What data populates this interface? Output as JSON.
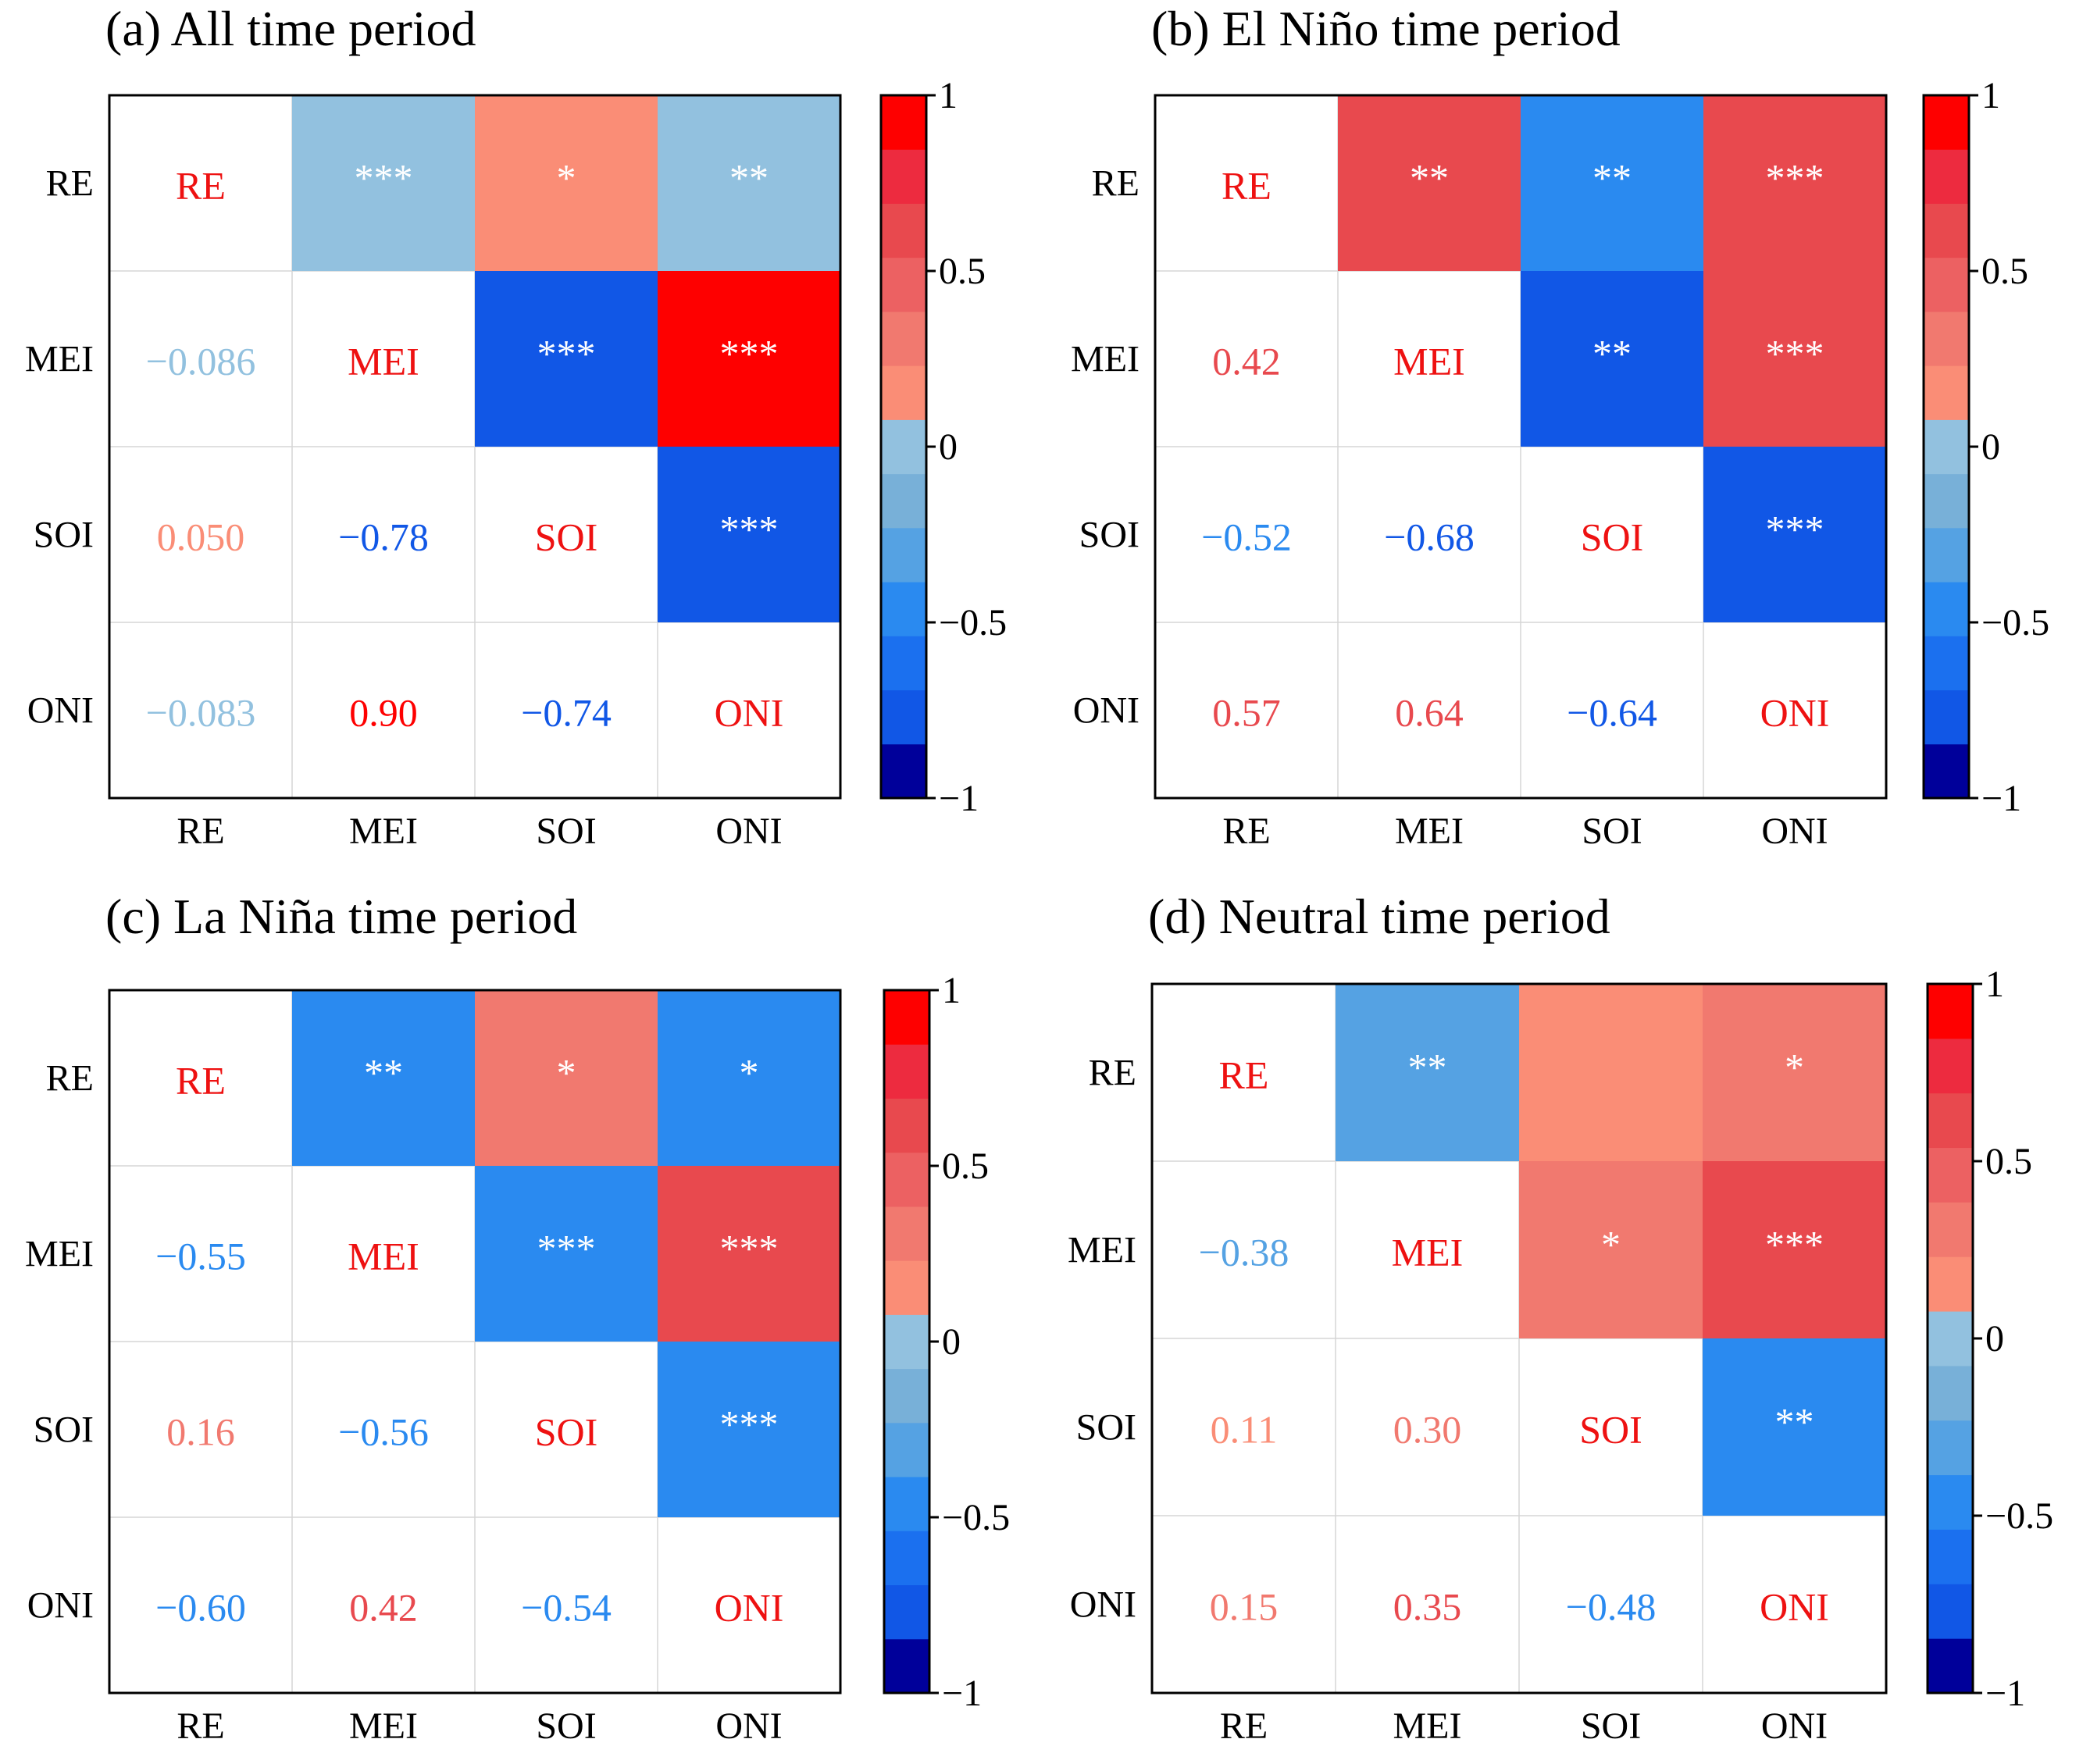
{
  "chart_data": [
    {
      "type": "heatmap",
      "title": "(a) All time period",
      "labels": [
        "RE",
        "MEI",
        "SOI",
        "ONI"
      ],
      "values": [
        [
          1,
          -0.086,
          0.05,
          -0.083
        ],
        [
          -0.086,
          1,
          -0.78,
          0.9
        ],
        [
          0.05,
          -0.78,
          1,
          -0.74
        ],
        [
          -0.083,
          0.9,
          -0.74,
          1
        ]
      ],
      "lower_text": [
        [
          "RE",
          "",
          "",
          ""
        ],
        [
          "−0.086",
          "MEI",
          "",
          ""
        ],
        [
          "0.050",
          "−0.78",
          "SOI",
          ""
        ],
        [
          "−0.083",
          "0.90",
          "−0.74",
          "ONI"
        ]
      ],
      "significance": [
        [
          "",
          "***",
          "*",
          "**"
        ],
        [
          "",
          "",
          "***",
          "***"
        ],
        [
          "",
          "",
          "",
          "***"
        ],
        [
          "",
          "",
          "",
          ""
        ]
      ],
      "colorbar": {
        "range": [
          -1,
          1
        ],
        "ticks": [
          "1",
          "0.5",
          "0",
          "−0.5",
          "−1"
        ]
      }
    },
    {
      "type": "heatmap",
      "title": "(b) El Niño time period",
      "labels": [
        "RE",
        "MEI",
        "SOI",
        "ONI"
      ],
      "values": [
        [
          1,
          0.42,
          -0.52,
          0.57
        ],
        [
          0.42,
          1,
          -0.68,
          0.64
        ],
        [
          -0.52,
          -0.68,
          1,
          -0.64
        ],
        [
          0.57,
          0.64,
          -0.64,
          1
        ]
      ],
      "lower_text": [
        [
          "RE",
          "",
          "",
          ""
        ],
        [
          "0.42",
          "MEI",
          "",
          ""
        ],
        [
          "−0.52",
          "−0.68",
          "SOI",
          ""
        ],
        [
          "0.57",
          "0.64",
          "−0.64",
          "ONI"
        ]
      ],
      "significance": [
        [
          "",
          "**",
          "**",
          "***"
        ],
        [
          "",
          "",
          "**",
          "***"
        ],
        [
          "",
          "",
          "",
          "***"
        ],
        [
          "",
          "",
          "",
          ""
        ]
      ],
      "colorbar": {
        "range": [
          -1,
          1
        ],
        "ticks": [
          "1",
          "0.5",
          "0",
          "−0.5",
          "−1"
        ]
      }
    },
    {
      "type": "heatmap",
      "title": "(c) La Niña time period",
      "labels": [
        "RE",
        "MEI",
        "SOI",
        "ONI"
      ],
      "values": [
        [
          1,
          -0.55,
          0.16,
          -0.6
        ],
        [
          -0.55,
          1,
          -0.56,
          0.42
        ],
        [
          0.16,
          -0.56,
          1,
          -0.54
        ],
        [
          -0.6,
          0.42,
          -0.54,
          1
        ]
      ],
      "lower_text": [
        [
          "RE",
          "",
          "",
          ""
        ],
        [
          "−0.55",
          "MEI",
          "",
          ""
        ],
        [
          "0.16",
          "−0.56",
          "SOI",
          ""
        ],
        [
          "−0.60",
          "0.42",
          "−0.54",
          "ONI"
        ]
      ],
      "significance": [
        [
          "",
          "**",
          "*",
          "*"
        ],
        [
          "",
          "",
          "***",
          "***"
        ],
        [
          "",
          "",
          "",
          "***"
        ],
        [
          "",
          "",
          "",
          ""
        ]
      ],
      "colorbar": {
        "range": [
          -1,
          1
        ],
        "ticks": [
          "1",
          "0.5",
          "0",
          "−0.5",
          "−1"
        ]
      }
    },
    {
      "type": "heatmap",
      "title": "(d) Neutral time period",
      "labels": [
        "RE",
        "MEI",
        "SOI",
        "ONI"
      ],
      "values": [
        [
          1,
          -0.38,
          0.11,
          0.15
        ],
        [
          -0.38,
          1,
          0.3,
          0.35
        ],
        [
          0.11,
          0.3,
          1,
          -0.48
        ],
        [
          0.15,
          0.35,
          -0.48,
          1
        ]
      ],
      "lower_text": [
        [
          "RE",
          "",
          "",
          ""
        ],
        [
          "−0.38",
          "MEI",
          "",
          ""
        ],
        [
          "0.11",
          "0.30",
          "SOI",
          ""
        ],
        [
          "0.15",
          "0.35",
          "−0.48",
          "ONI"
        ]
      ],
      "significance": [
        [
          "",
          "**",
          "",
          "*"
        ],
        [
          "",
          "",
          "*",
          "***"
        ],
        [
          "",
          "",
          "",
          "**"
        ],
        [
          "",
          "",
          "",
          ""
        ]
      ],
      "colorbar": {
        "range": [
          -1,
          1
        ],
        "ticks": [
          "1",
          "0.5",
          "0",
          "−0.5",
          "−1"
        ]
      }
    }
  ],
  "colors": {
    "diag_text": "#ee1111",
    "star_text": "#ffffff",
    "scale": [
      "#00009a",
      "#1157e6",
      "#1b70ef",
      "#2a8af0",
      "#55a2e3",
      "#78b0d8",
      "#92c1df",
      "#fa8d76",
      "#f1796f",
      "#ec6162",
      "#e8494e",
      "#ed2b3f",
      "#fe0000"
    ]
  }
}
